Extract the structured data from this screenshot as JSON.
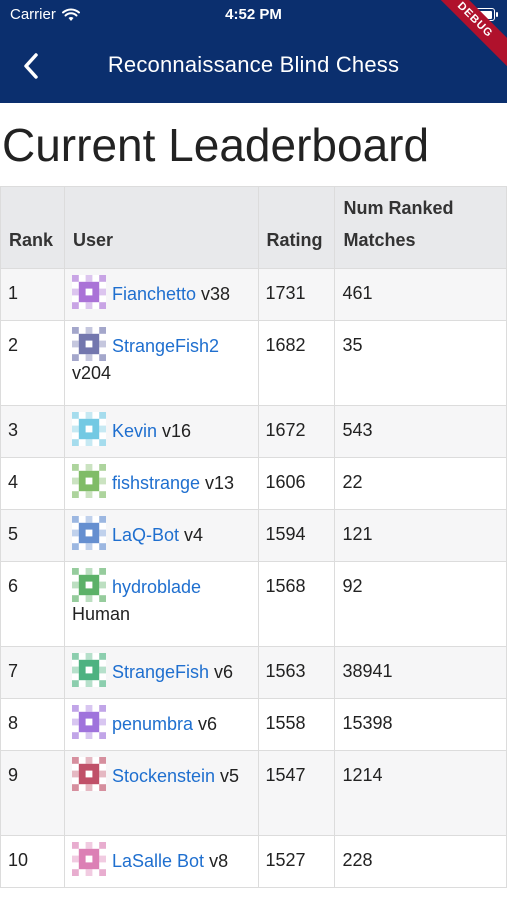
{
  "status_bar": {
    "carrier": "Carrier",
    "time": "4:52 PM"
  },
  "header": {
    "title": "Reconnaissance Blind Chess",
    "debug_label": "DEBUG"
  },
  "page_title": "Current Leaderboard",
  "table": {
    "headers": {
      "rank": "Rank",
      "user": "User",
      "rating": "Rating",
      "matches_line1": "Num Ranked",
      "matches_line2": "Matches"
    },
    "rows": [
      {
        "rank": "1",
        "name": "Fianchetto",
        "version": "v38",
        "rating": "1731",
        "matches": "461",
        "icon_color": "#9b59d0",
        "icon": "fianchetto-identicon"
      },
      {
        "rank": "2",
        "name": "StrangeFish2",
        "version": "v204",
        "rating": "1682",
        "matches": "35",
        "icon_color": "#5a5fa0",
        "icon": "strangefish2-identicon"
      },
      {
        "rank": "3",
        "name": "Kevin",
        "version": "v16",
        "rating": "1672",
        "matches": "543",
        "icon_color": "#5bc0de",
        "icon": "kevin-identicon"
      },
      {
        "rank": "4",
        "name": "fishstrange",
        "version": "v13",
        "rating": "1606",
        "matches": "22",
        "icon_color": "#6ab04c",
        "icon": "fishstrange-identicon"
      },
      {
        "rank": "5",
        "name": "LaQ-Bot",
        "version": "v4",
        "rating": "1594",
        "matches": "121",
        "icon_color": "#4a7bc8",
        "icon": "laq-bot-identicon"
      },
      {
        "rank": "6",
        "name": "hydroblade",
        "version": "Human",
        "rating": "1568",
        "matches": "92",
        "icon_color": "#3fa34d",
        "icon": "hydroblade-identicon"
      },
      {
        "rank": "7",
        "name": "StrangeFish",
        "version": "v6",
        "rating": "1563",
        "matches": "38941",
        "icon_color": "#2ea56b",
        "icon": "strangefish-identicon"
      },
      {
        "rank": "8",
        "name": "penumbra",
        "version": "v6",
        "rating": "1558",
        "matches": "15398",
        "icon_color": "#8e5bd6",
        "icon": "penumbra-identicon"
      },
      {
        "rank": "9",
        "name": "Stockenstein",
        "version": "v5",
        "rating": "1547",
        "matches": "1214",
        "icon_color": "#b5334f",
        "icon": "stockenstein-identicon"
      },
      {
        "rank": "10",
        "name": "LaSalle Bot",
        "version": "v8",
        "rating": "1527",
        "matches": "228",
        "icon_color": "#d66aa8",
        "icon": "lasalle-bot-identicon"
      }
    ]
  }
}
